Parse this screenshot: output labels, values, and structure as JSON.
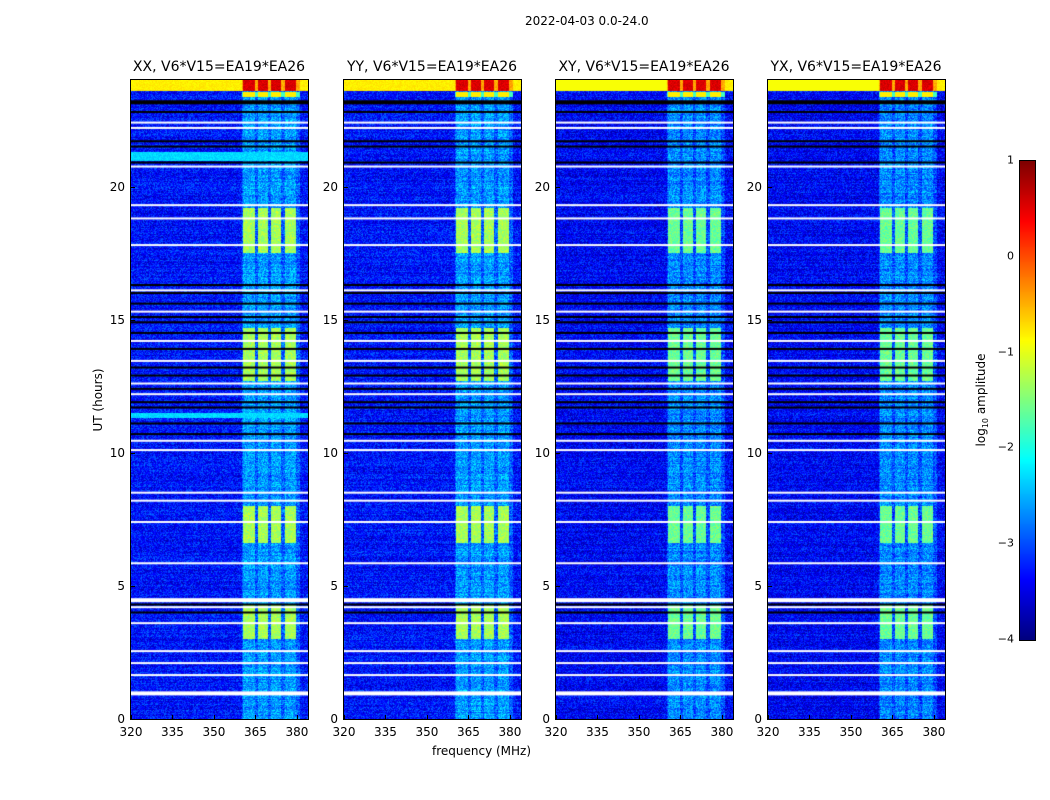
{
  "chart_data": {
    "type": "heatmap",
    "title": "2022-04-03 0.0-24.0",
    "xlabel": "frequency (MHz)",
    "ylabel": "UT (hours)",
    "xlim": [
      320,
      384
    ],
    "ylim": [
      0,
      24
    ],
    "xticks": [
      "320",
      "335",
      "350",
      "365",
      "380"
    ],
    "yticks": [
      "0",
      "5",
      "10",
      "15",
      "20"
    ],
    "panels": [
      {
        "title": "XX, V6*V15=EA19*EA26"
      },
      {
        "title": "YY, V6*V15=EA19*EA26"
      },
      {
        "title": "XY, V6*V15=EA19*EA26"
      },
      {
        "title": "YX, V6*V15=EA19*EA26"
      }
    ],
    "colorbar": {
      "label_prefix": "log",
      "label_sub": "10",
      "label_suffix": " amplitude",
      "range": [
        -4,
        1
      ],
      "ticks": [
        "1",
        "0",
        "−1",
        "−2",
        "−3",
        "−4"
      ],
      "colormap": "jet"
    },
    "background_log_amplitude": -3.3,
    "rfi_subbands_mhz": [
      [
        360.5,
        365
      ],
      [
        366,
        369.5
      ],
      [
        370.5,
        374.2
      ],
      [
        375.6,
        379.6
      ]
    ],
    "rfi_bright_hours": [
      [
        17.5,
        19.2
      ],
      [
        12.7,
        14.7
      ],
      [
        6.6,
        8.0
      ],
      [
        3.0,
        4.3
      ]
    ],
    "flagged_white_hours": [
      22.4,
      22.2,
      20.75,
      19.3,
      18.8,
      17.8,
      16.1,
      15.3,
      14.2,
      13.45,
      12.6,
      12.2,
      10.45,
      10.1,
      8.5,
      8.2,
      7.4,
      5.85,
      4.5,
      4.2,
      3.6,
      2.55,
      2.1,
      1.65,
      1.0
    ],
    "flagged_black_hours": [
      23.2,
      22.8,
      21.7,
      21.5,
      20.9,
      16.3,
      16.0,
      15.6,
      15.1,
      14.9,
      14.5,
      13.9,
      13.2,
      12.9,
      12.4,
      11.9,
      11.7,
      11.1,
      10.7,
      4.3,
      4.0
    ]
  }
}
